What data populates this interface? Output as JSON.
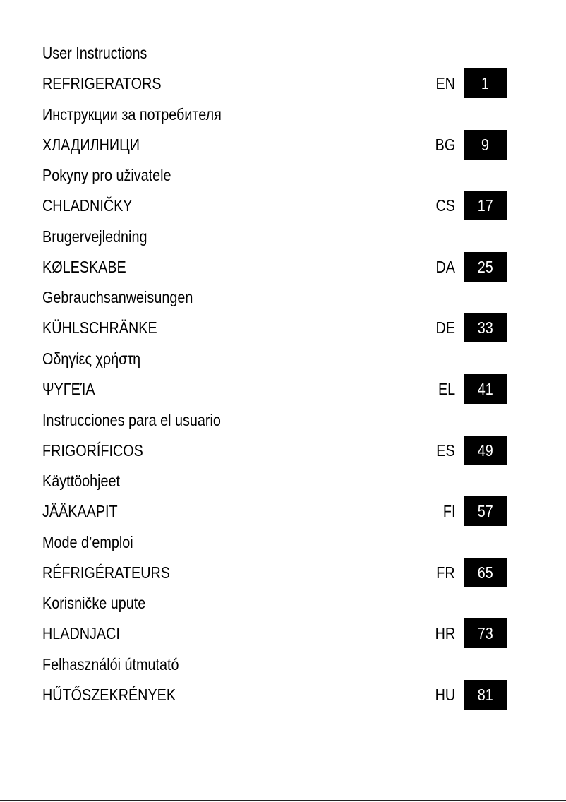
{
  "rows": [
    {
      "title": "User Instructions",
      "category": "REFRIGERATORS",
      "code": "EN",
      "page": "1"
    },
    {
      "title": "Инструкции за потребителя",
      "category": "ХЛАДИЛНИЦИ",
      "code": "BG",
      "page": "9"
    },
    {
      "title": "Pokyny pro uživatele",
      "category": "CHLADNIČKY",
      "code": "CS",
      "page": "17"
    },
    {
      "title": "Brugervejledning",
      "category": "KØLESKABE",
      "code": "DA",
      "page": "25"
    },
    {
      "title": "Gebrauchsanweisungen",
      "category": "KÜHLSCHRÄNKE",
      "code": "DE",
      "page": "33"
    },
    {
      "title": "Οδηγίες χρήστη",
      "category": "ΨΥΓΕΊΑ",
      "code": "EL",
      "page": "41"
    },
    {
      "title": "Instrucciones para el usuario",
      "category": "FRIGORÍFICOS",
      "code": "ES",
      "page": "49"
    },
    {
      "title": "Käyttöohjeet",
      "category": "JÄÄKAAPIT",
      "code": "FI",
      "page": "57"
    },
    {
      "title": "Mode d’emploi",
      "category": "RÉFRIGÉRATEURS",
      "code": "FR",
      "page": "65"
    },
    {
      "title": "Korisničke upute",
      "category": "HLADNJACI",
      "code": "HR",
      "page": "73"
    },
    {
      "title": "Felhasználói útmutató",
      "category": "HŰTŐSZEKRÉNYEK",
      "code": "HU",
      "page": "81"
    }
  ]
}
